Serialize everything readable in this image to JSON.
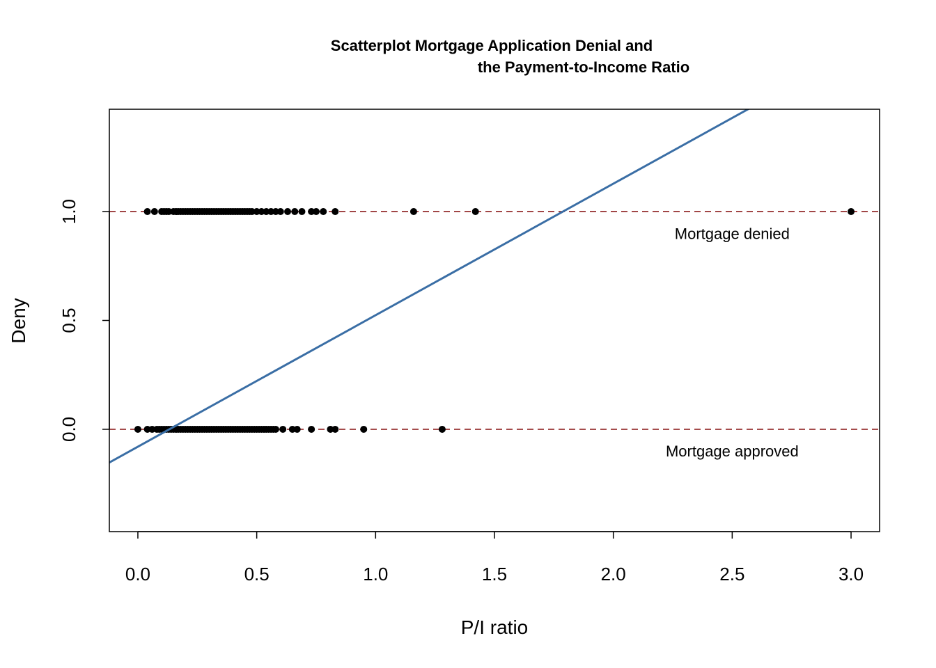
{
  "chart_data": {
    "type": "scatter",
    "title": "Scatterplot Mortgage Application Denial and\n                                          the Payment-to-Income Ratio",
    "title_lines": [
      "Scatterplot Mortgage Application Denial and",
      "the Payment-to-Income Ratio"
    ],
    "xlabel": "P/I ratio",
    "ylabel": "Deny",
    "xlim": [
      -0.12,
      3.12
    ],
    "ylim": [
      -0.47,
      1.47
    ],
    "x_ticks": [
      0.0,
      0.5,
      1.0,
      1.5,
      2.0,
      2.5,
      3.0
    ],
    "x_tick_labels": [
      "0.0",
      "0.5",
      "1.0",
      "1.5",
      "2.0",
      "2.5",
      "3.0"
    ],
    "y_ticks": [
      0.0,
      0.5,
      1.0
    ],
    "y_tick_labels": [
      "0.0",
      "0.5",
      "1.0"
    ],
    "grid": false,
    "legend": "none",
    "colors": {
      "points": "#000000",
      "regression_line": "#3a6ea5",
      "reference_lines": "#8b1a1a",
      "frame": "#000000"
    },
    "reference_lines": [
      {
        "y": 1.0,
        "style": "dashed"
      },
      {
        "y": 0.0,
        "style": "dashed"
      }
    ],
    "regression_line": {
      "intercept": -0.08,
      "slope": 0.604
    },
    "annotations": [
      {
        "text": "Mortgage denied",
        "x": 2.5,
        "y": 0.9
      },
      {
        "text": "Mortgage approved",
        "x": 2.5,
        "y": -0.1
      }
    ],
    "series": [
      {
        "points_y": 1,
        "x": [
          0.04,
          0.07,
          0.1,
          0.11,
          0.12,
          0.13,
          0.15,
          0.16,
          0.17,
          0.18,
          0.19,
          0.2,
          0.21,
          0.22,
          0.23,
          0.24,
          0.25,
          0.26,
          0.27,
          0.28,
          0.29,
          0.3,
          0.31,
          0.32,
          0.33,
          0.34,
          0.35,
          0.36,
          0.37,
          0.38,
          0.39,
          0.4,
          0.41,
          0.42,
          0.43,
          0.44,
          0.45,
          0.46,
          0.47,
          0.48,
          0.5,
          0.52,
          0.54,
          0.56,
          0.58,
          0.6,
          0.63,
          0.66,
          0.69,
          0.73,
          0.75,
          0.78,
          0.83,
          1.16,
          1.42,
          3.0
        ]
      },
      {
        "points_y": 0,
        "x": [
          0.0,
          0.04,
          0.06,
          0.08,
          0.09,
          0.1,
          0.11,
          0.12,
          0.13,
          0.14,
          0.15,
          0.16,
          0.17,
          0.18,
          0.19,
          0.2,
          0.21,
          0.22,
          0.23,
          0.24,
          0.25,
          0.26,
          0.27,
          0.28,
          0.29,
          0.3,
          0.31,
          0.32,
          0.33,
          0.34,
          0.35,
          0.36,
          0.37,
          0.38,
          0.39,
          0.4,
          0.41,
          0.42,
          0.43,
          0.44,
          0.45,
          0.46,
          0.47,
          0.48,
          0.49,
          0.5,
          0.51,
          0.52,
          0.53,
          0.54,
          0.55,
          0.56,
          0.57,
          0.58,
          0.61,
          0.65,
          0.67,
          0.73,
          0.81,
          0.83,
          0.95,
          1.28
        ]
      }
    ]
  }
}
